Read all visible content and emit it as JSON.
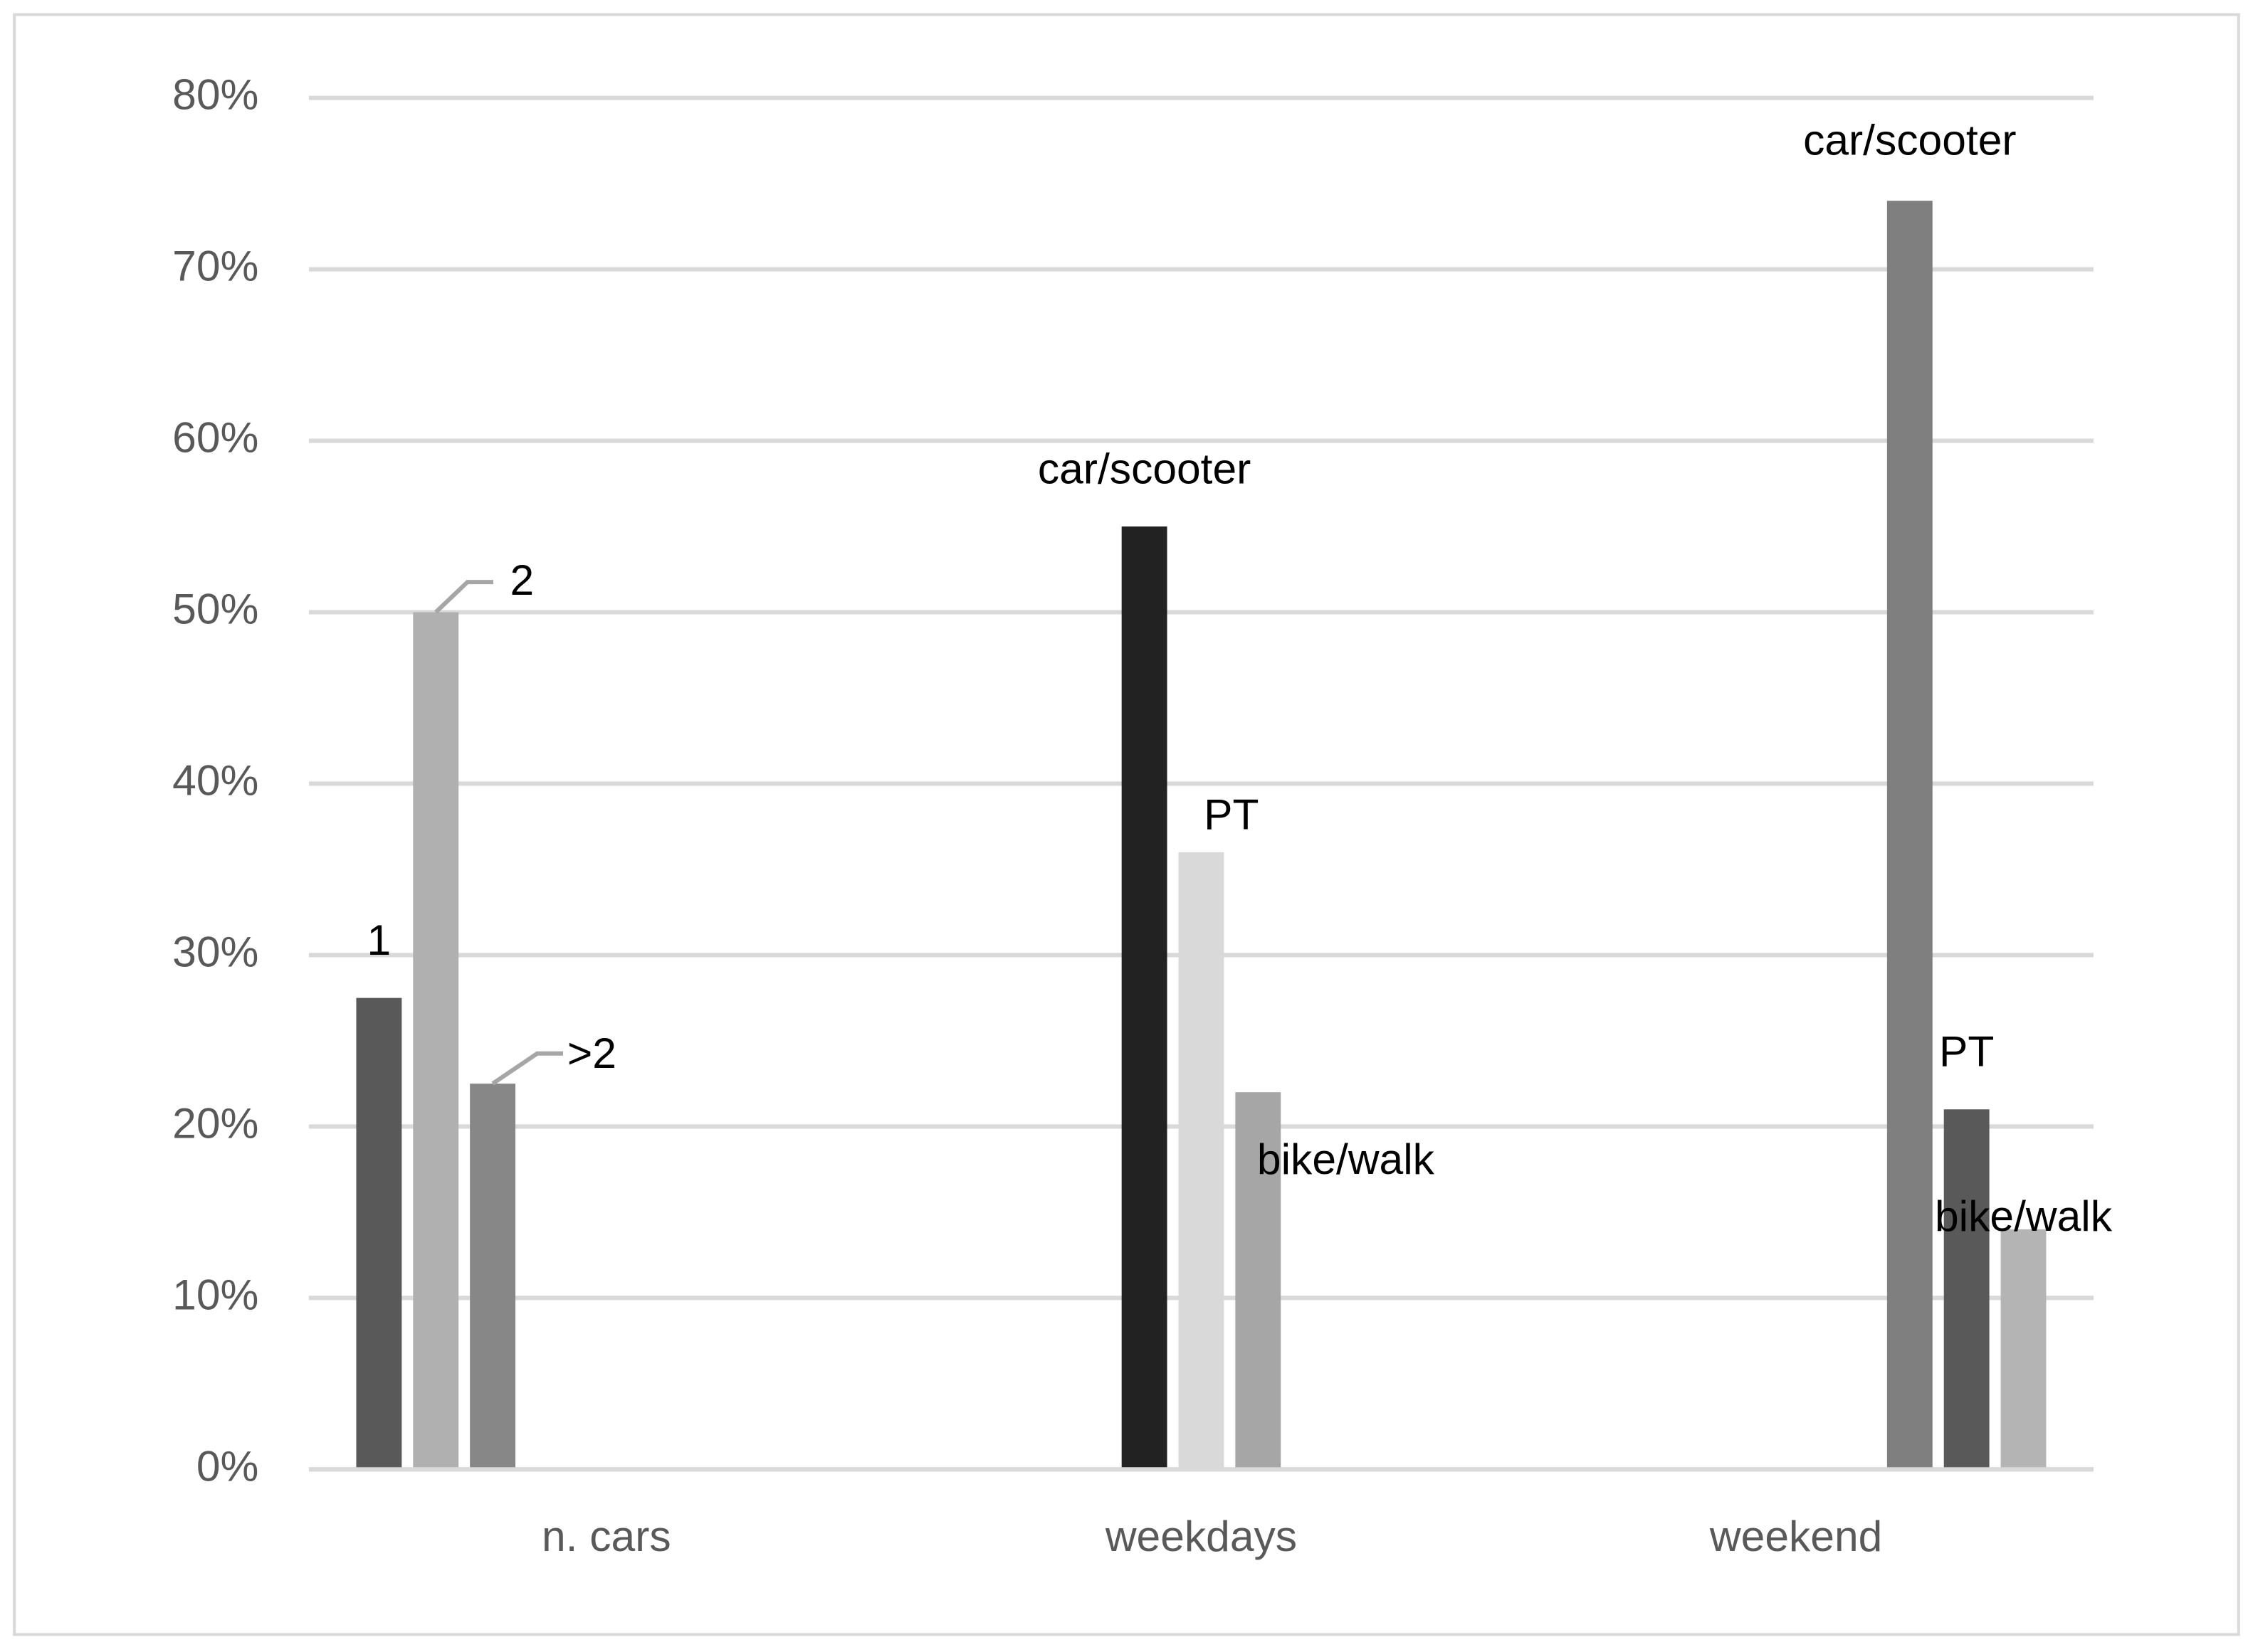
{
  "chart_data": {
    "type": "bar",
    "categories": [
      "n. cars",
      "weekdays",
      "weekend"
    ],
    "series": [
      {
        "name": "1",
        "color": "#595959",
        "values": [
          27.5,
          null,
          null
        ]
      },
      {
        "name": "2",
        "color": "#b0b0b0",
        "values": [
          50,
          null,
          null
        ]
      },
      {
        "name": ">2",
        "color": "#878787",
        "values": [
          22.5,
          null,
          null
        ]
      },
      {
        "name": "car/scooter",
        "color": "#222222",
        "values": [
          null,
          55,
          null
        ]
      },
      {
        "name": "PT",
        "color": "#d9d9d9",
        "values": [
          null,
          36,
          null
        ]
      },
      {
        "name": "bike/walk",
        "color": "#a6a6a6",
        "values": [
          null,
          22,
          null
        ]
      },
      {
        "name": "car/scooter",
        "color": "#7f7f7f",
        "values": [
          null,
          null,
          74
        ]
      },
      {
        "name": "PT",
        "color": "#595959",
        "values": [
          null,
          null,
          21
        ]
      },
      {
        "name": "bike/walk",
        "color": "#b4b4b4",
        "values": [
          null,
          null,
          14
        ]
      }
    ],
    "ylim": [
      0,
      80
    ],
    "yticks": [
      {
        "value": 0,
        "label": "0%"
      },
      {
        "value": 10,
        "label": "10%"
      },
      {
        "value": 20,
        "label": "20%"
      },
      {
        "value": 30,
        "label": "30%"
      },
      {
        "value": 40,
        "label": "40%"
      },
      {
        "value": 50,
        "label": "50%"
      },
      {
        "value": 60,
        "label": "60%"
      },
      {
        "value": 70,
        "label": "70%"
      },
      {
        "value": 80,
        "label": "80%"
      }
    ],
    "grid": true
  }
}
